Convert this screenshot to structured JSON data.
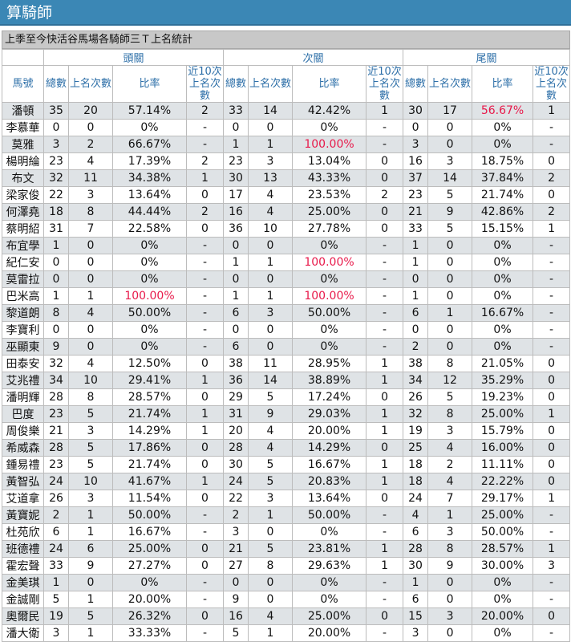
{
  "header": {
    "title": "算騎師"
  },
  "subtitle": "上季至今快活谷馬場各騎師三Ｔ上名統計",
  "groups": [
    "頭關",
    "次關",
    "尾關"
  ],
  "columns": {
    "jockey": "馬號",
    "total": "總數",
    "placed": "上名次數",
    "rate": "比率",
    "recent": "近10次上名次數"
  },
  "highlight_color": "#e8194a",
  "rows": [
    {
      "name": "潘頓",
      "g1": [
        "35",
        "20",
        "57.14%",
        "2"
      ],
      "g2": [
        "33",
        "14",
        "42.42%",
        "1"
      ],
      "g3": [
        "30",
        "17",
        "56.67%",
        "1"
      ],
      "red": [
        "g3"
      ]
    },
    {
      "name": "李慕華",
      "g1": [
        "0",
        "0",
        "0%",
        "-"
      ],
      "g2": [
        "0",
        "0",
        "0%",
        "-"
      ],
      "g3": [
        "0",
        "0",
        "0%",
        "-"
      ]
    },
    {
      "name": "莫雅",
      "g1": [
        "3",
        "2",
        "66.67%",
        "-"
      ],
      "g2": [
        "1",
        "1",
        "100.00%",
        "-"
      ],
      "g3": [
        "3",
        "0",
        "0%",
        "-"
      ],
      "red": [
        "g2"
      ]
    },
    {
      "name": "楊明綸",
      "g1": [
        "23",
        "4",
        "17.39%",
        "2"
      ],
      "g2": [
        "23",
        "3",
        "13.04%",
        "0"
      ],
      "g3": [
        "16",
        "3",
        "18.75%",
        "0"
      ]
    },
    {
      "name": "布文",
      "g1": [
        "32",
        "11",
        "34.38%",
        "1"
      ],
      "g2": [
        "30",
        "13",
        "43.33%",
        "0"
      ],
      "g3": [
        "37",
        "14",
        "37.84%",
        "2"
      ]
    },
    {
      "name": "梁家俊",
      "g1": [
        "22",
        "3",
        "13.64%",
        "0"
      ],
      "g2": [
        "17",
        "4",
        "23.53%",
        "2"
      ],
      "g3": [
        "23",
        "5",
        "21.74%",
        "0"
      ]
    },
    {
      "name": "何澤堯",
      "g1": [
        "18",
        "8",
        "44.44%",
        "2"
      ],
      "g2": [
        "16",
        "4",
        "25.00%",
        "0"
      ],
      "g3": [
        "21",
        "9",
        "42.86%",
        "2"
      ]
    },
    {
      "name": "蔡明紹",
      "g1": [
        "31",
        "7",
        "22.58%",
        "0"
      ],
      "g2": [
        "36",
        "10",
        "27.78%",
        "0"
      ],
      "g3": [
        "33",
        "5",
        "15.15%",
        "1"
      ]
    },
    {
      "name": "布宜學",
      "g1": [
        "1",
        "0",
        "0%",
        "-"
      ],
      "g2": [
        "0",
        "0",
        "0%",
        "-"
      ],
      "g3": [
        "1",
        "0",
        "0%",
        "-"
      ]
    },
    {
      "name": "紀仁安",
      "g1": [
        "0",
        "0",
        "0%",
        "-"
      ],
      "g2": [
        "1",
        "1",
        "100.00%",
        "-"
      ],
      "g3": [
        "1",
        "0",
        "0%",
        "-"
      ],
      "red": [
        "g2"
      ]
    },
    {
      "name": "莫雷拉",
      "g1": [
        "0",
        "0",
        "0%",
        "-"
      ],
      "g2": [
        "0",
        "0",
        "0%",
        "-"
      ],
      "g3": [
        "0",
        "0",
        "0%",
        "-"
      ]
    },
    {
      "name": "巴米高",
      "g1": [
        "1",
        "1",
        "100.00%",
        "-"
      ],
      "g2": [
        "1",
        "1",
        "100.00%",
        "-"
      ],
      "g3": [
        "1",
        "0",
        "0%",
        "-"
      ],
      "red": [
        "g1",
        "g2"
      ]
    },
    {
      "name": "黎道朗",
      "g1": [
        "8",
        "4",
        "50.00%",
        "-"
      ],
      "g2": [
        "6",
        "3",
        "50.00%",
        "-"
      ],
      "g3": [
        "6",
        "1",
        "16.67%",
        "-"
      ]
    },
    {
      "name": "李寶利",
      "g1": [
        "0",
        "0",
        "0%",
        "-"
      ],
      "g2": [
        "0",
        "0",
        "0%",
        "-"
      ],
      "g3": [
        "0",
        "0",
        "0%",
        "-"
      ]
    },
    {
      "name": "巫顯東",
      "g1": [
        "9",
        "0",
        "0%",
        "-"
      ],
      "g2": [
        "6",
        "0",
        "0%",
        "-"
      ],
      "g3": [
        "2",
        "0",
        "0%",
        "-"
      ]
    },
    {
      "name": "田泰安",
      "g1": [
        "32",
        "4",
        "12.50%",
        "0"
      ],
      "g2": [
        "38",
        "11",
        "28.95%",
        "1"
      ],
      "g3": [
        "38",
        "8",
        "21.05%",
        "0"
      ]
    },
    {
      "name": "艾兆禮",
      "g1": [
        "34",
        "10",
        "29.41%",
        "1"
      ],
      "g2": [
        "36",
        "14",
        "38.89%",
        "1"
      ],
      "g3": [
        "34",
        "12",
        "35.29%",
        "0"
      ]
    },
    {
      "name": "潘明輝",
      "g1": [
        "28",
        "8",
        "28.57%",
        "0"
      ],
      "g2": [
        "29",
        "5",
        "17.24%",
        "0"
      ],
      "g3": [
        "26",
        "5",
        "19.23%",
        "0"
      ]
    },
    {
      "name": "巴度",
      "g1": [
        "23",
        "5",
        "21.74%",
        "1"
      ],
      "g2": [
        "31",
        "9",
        "29.03%",
        "1"
      ],
      "g3": [
        "32",
        "8",
        "25.00%",
        "1"
      ]
    },
    {
      "name": "周俊樂",
      "g1": [
        "21",
        "3",
        "14.29%",
        "1"
      ],
      "g2": [
        "20",
        "4",
        "20.00%",
        "1"
      ],
      "g3": [
        "19",
        "3",
        "15.79%",
        "0"
      ]
    },
    {
      "name": "希威森",
      "g1": [
        "28",
        "5",
        "17.86%",
        "0"
      ],
      "g2": [
        "28",
        "4",
        "14.29%",
        "0"
      ],
      "g3": [
        "25",
        "4",
        "16.00%",
        "0"
      ]
    },
    {
      "name": "鍾易禮",
      "g1": [
        "23",
        "5",
        "21.74%",
        "0"
      ],
      "g2": [
        "30",
        "5",
        "16.67%",
        "1"
      ],
      "g3": [
        "18",
        "2",
        "11.11%",
        "0"
      ]
    },
    {
      "name": "黃智弘",
      "g1": [
        "24",
        "10",
        "41.67%",
        "1"
      ],
      "g2": [
        "24",
        "5",
        "20.83%",
        "1"
      ],
      "g3": [
        "18",
        "4",
        "22.22%",
        "0"
      ]
    },
    {
      "name": "艾道拿",
      "g1": [
        "26",
        "3",
        "11.54%",
        "0"
      ],
      "g2": [
        "22",
        "3",
        "13.64%",
        "0"
      ],
      "g3": [
        "24",
        "7",
        "29.17%",
        "1"
      ]
    },
    {
      "name": "黃寶妮",
      "g1": [
        "2",
        "1",
        "50.00%",
        "-"
      ],
      "g2": [
        "2",
        "1",
        "50.00%",
        "-"
      ],
      "g3": [
        "4",
        "1",
        "25.00%",
        "-"
      ]
    },
    {
      "name": "杜苑欣",
      "g1": [
        "6",
        "1",
        "16.67%",
        "-"
      ],
      "g2": [
        "3",
        "0",
        "0%",
        "-"
      ],
      "g3": [
        "6",
        "3",
        "50.00%",
        "-"
      ]
    },
    {
      "name": "班德禮",
      "g1": [
        "24",
        "6",
        "25.00%",
        "0"
      ],
      "g2": [
        "21",
        "5",
        "23.81%",
        "1"
      ],
      "g3": [
        "28",
        "8",
        "28.57%",
        "1"
      ]
    },
    {
      "name": "霍宏聲",
      "g1": [
        "33",
        "9",
        "27.27%",
        "0"
      ],
      "g2": [
        "27",
        "8",
        "29.63%",
        "1"
      ],
      "g3": [
        "30",
        "9",
        "30.00%",
        "3"
      ]
    },
    {
      "name": "金美琪",
      "g1": [
        "1",
        "0",
        "0%",
        "-"
      ],
      "g2": [
        "0",
        "0",
        "0%",
        "-"
      ],
      "g3": [
        "1",
        "0",
        "0%",
        "-"
      ]
    },
    {
      "name": "金誠剛",
      "g1": [
        "5",
        "1",
        "20.00%",
        "-"
      ],
      "g2": [
        "9",
        "0",
        "0%",
        "-"
      ],
      "g3": [
        "6",
        "0",
        "0%",
        "-"
      ]
    },
    {
      "name": "奧爾民",
      "g1": [
        "19",
        "5",
        "26.32%",
        "0"
      ],
      "g2": [
        "16",
        "4",
        "25.00%",
        "0"
      ],
      "g3": [
        "15",
        "3",
        "20.00%",
        "0"
      ]
    },
    {
      "name": "潘大衛",
      "g1": [
        "3",
        "1",
        "33.33%",
        "-"
      ],
      "g2": [
        "5",
        "1",
        "20.00%",
        "-"
      ],
      "g3": [
        "3",
        "0",
        "0%",
        "-"
      ]
    }
  ]
}
